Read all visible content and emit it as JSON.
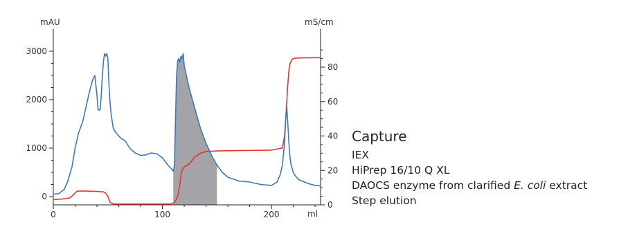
{
  "chart_data": {
    "type": "line",
    "x_axis": {
      "unit_label": "ml",
      "range": [
        0,
        245
      ],
      "ticks": [
        0,
        100,
        200
      ]
    },
    "y_left": {
      "unit_label": "mAU",
      "range": [
        -100,
        3400
      ],
      "ticks": [
        0,
        1000,
        2000,
        3000
      ]
    },
    "y_right": {
      "unit_label": "mS/cm",
      "range": [
        0,
        97
      ],
      "ticks": [
        0,
        20,
        40,
        60,
        80
      ]
    },
    "colors": {
      "absorbance": "#3b78c0",
      "conductivity": "#e8312f",
      "fraction": "#a3a3a8",
      "axis": "#222222"
    },
    "series": [
      {
        "axis": "left",
        "color": "#3b78c0",
        "x": [
          0,
          5,
          10,
          13,
          17,
          20,
          23,
          27,
          30,
          33,
          36,
          38,
          40,
          41,
          42,
          43,
          44,
          45,
          46,
          47,
          48,
          49,
          50,
          51,
          52,
          53,
          55,
          58,
          62,
          66,
          70,
          75,
          80,
          85,
          90,
          95,
          100,
          105,
          108,
          110,
          111,
          112,
          113,
          114,
          115,
          116,
          117,
          118,
          119,
          120,
          122,
          125,
          130,
          135,
          140,
          145,
          150,
          155,
          160,
          170,
          180,
          190,
          200,
          205,
          208,
          210,
          212,
          213,
          214,
          215,
          216,
          217,
          218,
          220,
          222,
          225,
          230,
          235,
          240,
          245
        ],
        "y": [
          50,
          60,
          150,
          300,
          600,
          1000,
          1300,
          1550,
          1850,
          2150,
          2400,
          2500,
          2100,
          1800,
          1780,
          1800,
          2100,
          2500,
          2800,
          2950,
          2900,
          2950,
          2850,
          2300,
          1950,
          1700,
          1400,
          1300,
          1200,
          1150,
          1000,
          900,
          850,
          860,
          900,
          880,
          800,
          650,
          580,
          520,
          650,
          1600,
          2500,
          2800,
          2850,
          2780,
          2900,
          2850,
          2950,
          2700,
          2500,
          2200,
          1800,
          1400,
          1100,
          850,
          650,
          500,
          400,
          320,
          300,
          250,
          230,
          300,
          450,
          650,
          1100,
          1600,
          1850,
          1500,
          1100,
          800,
          650,
          500,
          420,
          350,
          300,
          260,
          230,
          220
        ]
      },
      {
        "axis": "right",
        "color": "#e8312f",
        "x": [
          0,
          10,
          15,
          18,
          20,
          22,
          25,
          30,
          40,
          46,
          48,
          50,
          51,
          52,
          55,
          60,
          80,
          100,
          108,
          110,
          112,
          114,
          116,
          117,
          118,
          120,
          125,
          130,
          135,
          140,
          150,
          170,
          200,
          210,
          212,
          213,
          214,
          215,
          216,
          217,
          218,
          219,
          220,
          222,
          225,
          230,
          245
        ],
        "y": [
          3,
          3.5,
          4,
          5.5,
          7,
          8,
          8,
          8,
          7.8,
          7.5,
          6.8,
          5,
          3,
          1.5,
          0.5,
          0.5,
          0.5,
          0.5,
          0.5,
          1,
          2.5,
          5,
          12,
          17,
          20,
          22,
          24,
          28,
          30,
          31,
          31.3,
          31.5,
          31.8,
          33,
          40,
          50,
          60,
          70,
          78,
          82,
          83.5,
          84.5,
          85,
          85.2,
          85.3,
          85.4,
          85.5
        ]
      }
    ],
    "shaded_fraction": {
      "x_range": [
        110,
        150
      ]
    },
    "legend": {
      "title": "Capture",
      "line1": "IEX",
      "line2": "HiPrep 16/10 Q XL",
      "line3_prefix": "DAOCS enzyme from clarified ",
      "line3_italic": "E. coli",
      "line3_suffix": " extract",
      "line4": "Step elution"
    }
  }
}
